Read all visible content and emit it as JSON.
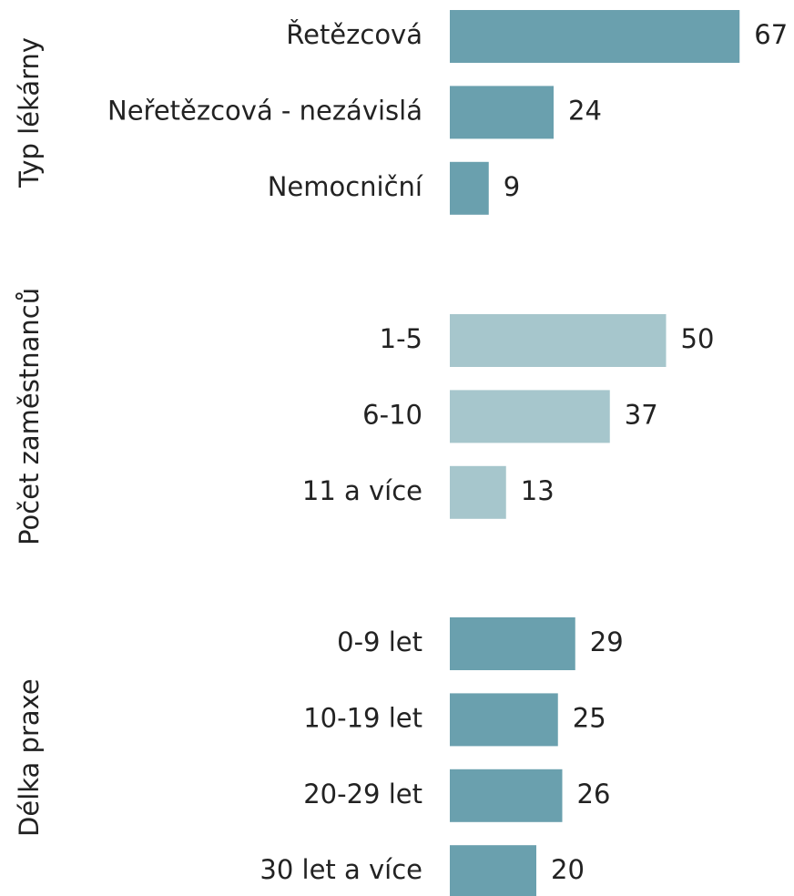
{
  "chart_data": [
    {
      "type": "bar",
      "title": "Typ lékárny",
      "categories": [
        "Řetězcová",
        "Neřetězcová - nezávislá",
        "Nemocniční"
      ],
      "values": [
        67,
        24,
        9
      ],
      "color": "#6aa0ae"
    },
    {
      "type": "bar",
      "title": "Počet zaměstnanců",
      "categories": [
        "1-5",
        "6-10",
        "11 a více"
      ],
      "values": [
        50,
        37,
        13
      ],
      "color": "#a6c6cc"
    },
    {
      "type": "bar",
      "title": "Délka praxe",
      "categories": [
        "0-9 let",
        "10-19 let",
        "20-29 let",
        "30 let a více"
      ],
      "values": [
        29,
        25,
        26,
        20
      ],
      "color": "#6aa0ae"
    }
  ]
}
